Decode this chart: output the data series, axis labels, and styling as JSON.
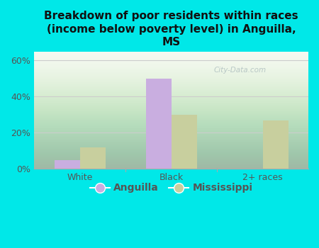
{
  "title": "Breakdown of poor residents within races\n(income below poverty level) in Anguilla,\nMS",
  "categories": [
    "White",
    "Black",
    "2+ races"
  ],
  "anguilla_values": [
    0.05,
    0.5,
    0.0
  ],
  "mississippi_values": [
    0.12,
    0.3,
    0.27
  ],
  "anguilla_color": "#c9aee0",
  "mississippi_color": "#c8cf9e",
  "background_color": "#00e8e8",
  "plot_bg_start": "#d4e8c2",
  "plot_bg_end": "#f5f8f0",
  "ylim": [
    0,
    0.65
  ],
  "yticks": [
    0.0,
    0.2,
    0.4,
    0.6
  ],
  "ytick_labels": [
    "0%",
    "20%",
    "40%",
    "60%"
  ],
  "bar_width": 0.28,
  "legend_labels": [
    "Anguilla",
    "Mississippi"
  ],
  "watermark": "City-Data.com",
  "title_color": "#111111",
  "tick_color": "#555555",
  "divider_color": "#aaaaaa",
  "grid_color": "#cccccc"
}
